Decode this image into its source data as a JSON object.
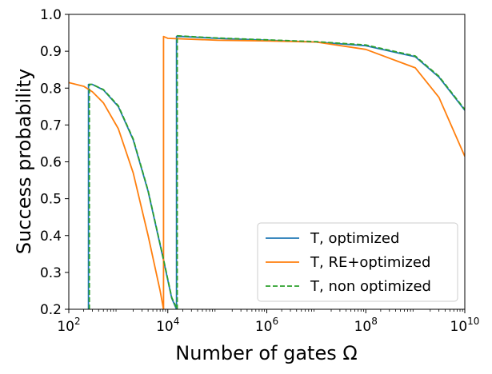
{
  "chart_data": {
    "type": "line",
    "xlabel": "Number of gates Ω",
    "ylabel": "Success probability",
    "xscale": "log",
    "xlim": [
      100,
      10000000000
    ],
    "ylim": [
      0.2,
      1.0
    ],
    "x_ticks": [
      {
        "value": 100,
        "base": "10",
        "exp": "2"
      },
      {
        "value": 10000,
        "base": "10",
        "exp": "4"
      },
      {
        "value": 1000000,
        "base": "10",
        "exp": "6"
      },
      {
        "value": 100000000,
        "base": "10",
        "exp": "8"
      },
      {
        "value": 10000000000,
        "base": "10",
        "exp": "10"
      }
    ],
    "y_ticks": [
      "0.2",
      "0.3",
      "0.4",
      "0.5",
      "0.6",
      "0.7",
      "0.8",
      "0.9",
      "1.0"
    ],
    "grid": false,
    "legend_position": "lower-right",
    "series": [
      {
        "name": "T, optimized",
        "color": "#1f77b4",
        "dash": "solid",
        "x": [
          250,
          250,
          300,
          500,
          1000,
          2000,
          4000,
          8000,
          12000,
          15000,
          15000,
          20000,
          100000,
          1000000,
          10000000,
          100000000,
          1000000000,
          3000000000,
          10000000000
        ],
        "y": [
          0.2,
          0.81,
          0.81,
          0.795,
          0.75,
          0.66,
          0.52,
          0.34,
          0.23,
          0.2,
          0.94,
          0.94,
          0.935,
          0.93,
          0.925,
          0.915,
          0.885,
          0.83,
          0.74
        ]
      },
      {
        "name": "T, RE+optimized",
        "color": "#ff7f0e",
        "dash": "solid",
        "x": [
          100,
          200,
          300,
          500,
          1000,
          2000,
          4000,
          7000,
          8200,
          8200,
          10000,
          100000,
          1000000,
          10000000,
          100000000,
          1000000000,
          3000000000,
          10000000000
        ],
        "y": [
          0.815,
          0.805,
          0.79,
          0.76,
          0.69,
          0.57,
          0.4,
          0.25,
          0.2,
          0.94,
          0.935,
          0.93,
          0.928,
          0.925,
          0.905,
          0.855,
          0.775,
          0.615
        ]
      },
      {
        "name": "T, non optimized",
        "color": "#2ca02c",
        "dash": "dashed",
        "x": [
          260,
          260,
          300,
          500,
          1000,
          2000,
          4000,
          8000,
          12000,
          15500,
          15500,
          20000,
          100000,
          1000000,
          10000000,
          100000000,
          1000000000,
          3000000000,
          10000000000
        ],
        "y": [
          0.2,
          0.81,
          0.81,
          0.796,
          0.752,
          0.662,
          0.522,
          0.342,
          0.232,
          0.2,
          0.942,
          0.941,
          0.936,
          0.931,
          0.926,
          0.917,
          0.887,
          0.832,
          0.742
        ]
      }
    ]
  }
}
